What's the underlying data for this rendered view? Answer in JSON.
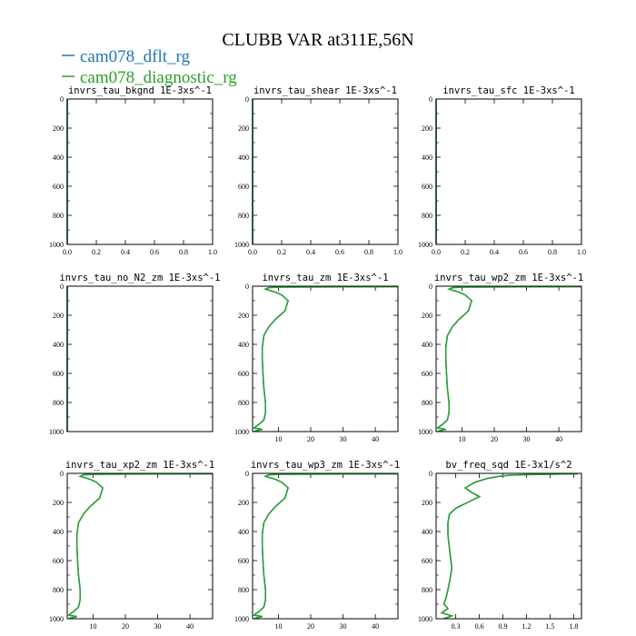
{
  "figure": {
    "title": "CLUBB VAR at311E,56N",
    "legend": [
      {
        "label": "cam078_dflt_rg",
        "color": "#1f77b4"
      },
      {
        "label": "cam078_diagnostic_rg",
        "color": "#2ca02c"
      }
    ]
  },
  "chart_data": [
    {
      "type": "line",
      "title": "invrs_tau_bkgnd  1E-3xs^-1",
      "xlim": [
        0,
        1
      ],
      "ylim": [
        1000,
        0
      ],
      "xticks": [
        "0.0",
        "0.2",
        "0.4",
        "0.6",
        "0.8",
        "1.0"
      ],
      "yticks": [
        "0",
        "200",
        "400",
        "600",
        "800",
        "1000"
      ],
      "series": [
        {
          "color": "#1f77b4",
          "x": [
            0,
            0
          ],
          "y": [
            0,
            1000
          ]
        },
        {
          "color": "#2ca02c",
          "x": [
            0,
            0
          ],
          "y": [
            0,
            1000
          ]
        }
      ]
    },
    {
      "type": "line",
      "title": "invrs_tau_shear  1E-3xs^-1",
      "xlim": [
        0,
        1
      ],
      "ylim": [
        1000,
        0
      ],
      "xticks": [
        "0.0",
        "0.2",
        "0.4",
        "0.6",
        "0.8",
        "1.0"
      ],
      "yticks": [
        "0",
        "200",
        "400",
        "600",
        "800",
        "1000"
      ],
      "series": [
        {
          "color": "#1f77b4",
          "x": [
            0,
            0
          ],
          "y": [
            0,
            1000
          ]
        },
        {
          "color": "#2ca02c",
          "x": [
            0,
            0
          ],
          "y": [
            0,
            1000
          ]
        }
      ]
    },
    {
      "type": "line",
      "title": "invrs_tau_sfc  1E-3xs^-1",
      "xlim": [
        0,
        1
      ],
      "ylim": [
        1000,
        0
      ],
      "xticks": [
        "0.0",
        "0.2",
        "0.4",
        "0.6",
        "0.8",
        "1.0"
      ],
      "yticks": [
        "0",
        "200",
        "400",
        "600",
        "800",
        "1000"
      ],
      "series": [
        {
          "color": "#1f77b4",
          "x": [
            0,
            0
          ],
          "y": [
            0,
            1000
          ]
        },
        {
          "color": "#2ca02c",
          "x": [
            0,
            0
          ],
          "y": [
            0,
            1000
          ]
        }
      ]
    },
    {
      "type": "line",
      "title": "invrs_tau_no_N2_zm  1E-3xs^-1",
      "xlim": [
        0,
        1
      ],
      "ylim": [
        1000,
        0
      ],
      "xticks": [],
      "yticks": [
        "0",
        "200",
        "400",
        "600",
        "800",
        "1000"
      ],
      "series": [
        {
          "color": "#1f77b4",
          "x": [
            0,
            0
          ],
          "y": [
            0,
            1000
          ]
        },
        {
          "color": "#2ca02c",
          "x": [
            0,
            0
          ],
          "y": [
            0,
            1000
          ]
        }
      ]
    },
    {
      "type": "line",
      "title": "invrs_tau_zm  1E-3xs^-1",
      "xlim": [
        2,
        47
      ],
      "ylim": [
        1000,
        0
      ],
      "xticks": [
        "10",
        "20",
        "30",
        "40"
      ],
      "yticks": [
        "0",
        "200",
        "400",
        "600",
        "800",
        "1000"
      ],
      "series": [
        {
          "color": "#1f77b4",
          "x": [
            47,
            10,
            7,
            6,
            9,
            11,
            13,
            12,
            9,
            7,
            5.5,
            5,
            5,
            5.2,
            5.5,
            6,
            6,
            5.5,
            4,
            3,
            2.5,
            5,
            3,
            2.5
          ],
          "y": [
            3,
            6,
            10,
            20,
            40,
            60,
            100,
            170,
            230,
            280,
            340,
            420,
            500,
            600,
            700,
            800,
            870,
            920,
            950,
            965,
            975,
            985,
            995,
            1000
          ]
        },
        {
          "color": "#2ca02c",
          "x": [
            47,
            10,
            7,
            6,
            9,
            11,
            13,
            12,
            9,
            7,
            5.5,
            5,
            5,
            5.2,
            5.5,
            6,
            6,
            5.5,
            4,
            3,
            2.5,
            5,
            3,
            2.5
          ],
          "y": [
            3,
            6,
            10,
            20,
            40,
            60,
            100,
            170,
            230,
            280,
            340,
            420,
            500,
            600,
            700,
            800,
            870,
            920,
            950,
            965,
            975,
            985,
            995,
            1000
          ]
        }
      ]
    },
    {
      "type": "line",
      "title": "invrs_tau_wp2_zm  1E-3xs^-1",
      "xlim": [
        2,
        47
      ],
      "ylim": [
        1000,
        0
      ],
      "xticks": [
        "10",
        "20",
        "30",
        "40"
      ],
      "yticks": [
        "0",
        "200",
        "400",
        "600",
        "800",
        "1000"
      ],
      "series": [
        {
          "color": "#1f77b4",
          "x": [
            47,
            10,
            7,
            6,
            9,
            11,
            13,
            12,
            9,
            7,
            5.5,
            5,
            5,
            5.2,
            5.5,
            6,
            6,
            5.5,
            4,
            3,
            2.5,
            5,
            3,
            2.5
          ],
          "y": [
            3,
            6,
            10,
            20,
            40,
            60,
            100,
            170,
            230,
            280,
            340,
            420,
            500,
            600,
            700,
            800,
            870,
            920,
            950,
            965,
            975,
            985,
            995,
            1000
          ]
        },
        {
          "color": "#2ca02c",
          "x": [
            47,
            10,
            7,
            6,
            9,
            11,
            13,
            12,
            9,
            7,
            5.5,
            5,
            5,
            5.2,
            5.5,
            6,
            6,
            5.5,
            4,
            3,
            2.5,
            5,
            3,
            2.5
          ],
          "y": [
            3,
            6,
            10,
            20,
            40,
            60,
            100,
            170,
            230,
            280,
            340,
            420,
            500,
            600,
            700,
            800,
            870,
            920,
            950,
            965,
            975,
            985,
            995,
            1000
          ]
        }
      ]
    },
    {
      "type": "line",
      "title": "invrs_tau_xp2_zm  1E-3xs^-1",
      "xlim": [
        2,
        47
      ],
      "ylim": [
        1000,
        0
      ],
      "xticks": [
        "10",
        "20",
        "30",
        "40"
      ],
      "yticks": [
        "0",
        "200",
        "400",
        "600",
        "800",
        "1000"
      ],
      "series": [
        {
          "color": "#1f77b4",
          "x": [
            47,
            10,
            7,
            6,
            9,
            11,
            13,
            12,
            9,
            7,
            5.5,
            5,
            5,
            5.2,
            5.5,
            6,
            6,
            5.5,
            4,
            3,
            2.5,
            5,
            3,
            2.5
          ],
          "y": [
            3,
            6,
            10,
            20,
            40,
            60,
            100,
            170,
            230,
            280,
            340,
            420,
            500,
            600,
            700,
            800,
            870,
            920,
            950,
            965,
            975,
            985,
            995,
            1000
          ]
        },
        {
          "color": "#2ca02c",
          "x": [
            47,
            10,
            7,
            6,
            9,
            11,
            13,
            12,
            9,
            7,
            5.5,
            5,
            5,
            5.2,
            5.5,
            6,
            6,
            5.5,
            4,
            3,
            2.5,
            5,
            3,
            2.5
          ],
          "y": [
            3,
            6,
            10,
            20,
            40,
            60,
            100,
            170,
            230,
            280,
            340,
            420,
            500,
            600,
            700,
            800,
            870,
            920,
            950,
            965,
            975,
            985,
            995,
            1000
          ]
        }
      ]
    },
    {
      "type": "line",
      "title": "invrs_tau_wp3_zm  1E-3xs^-1",
      "xlim": [
        2,
        47
      ],
      "ylim": [
        1000,
        0
      ],
      "xticks": [
        "10",
        "20",
        "30",
        "40"
      ],
      "yticks": [
        "0",
        "200",
        "400",
        "600",
        "800",
        "1000"
      ],
      "series": [
        {
          "color": "#1f77b4",
          "x": [
            47,
            10,
            7,
            6,
            9,
            11,
            13,
            12,
            9,
            7,
            5.5,
            5,
            5,
            5.2,
            5.5,
            6,
            6,
            5.5,
            4,
            3,
            2.5,
            5,
            3,
            2.5
          ],
          "y": [
            3,
            6,
            10,
            20,
            40,
            60,
            100,
            170,
            230,
            280,
            340,
            420,
            500,
            600,
            700,
            800,
            870,
            920,
            950,
            965,
            975,
            985,
            995,
            1000
          ]
        },
        {
          "color": "#2ca02c",
          "x": [
            47,
            10,
            7,
            6,
            9,
            11,
            13,
            12,
            9,
            7,
            5.5,
            5,
            5,
            5.2,
            5.5,
            6,
            6,
            5.5,
            4,
            3,
            2.5,
            5,
            3,
            2.5
          ],
          "y": [
            3,
            6,
            10,
            20,
            40,
            60,
            100,
            170,
            230,
            280,
            340,
            420,
            500,
            600,
            700,
            800,
            870,
            920,
            950,
            965,
            975,
            985,
            995,
            1000
          ]
        }
      ]
    },
    {
      "type": "line",
      "title": "bv_freq_sqd  1E-3x1/s^2",
      "xlim": [
        0.05,
        1.9
      ],
      "ylim": [
        1000,
        0
      ],
      "xticks": [
        "0.3",
        "0.6",
        "0.9",
        "1.2",
        "1.5",
        "1.8"
      ],
      "yticks": [
        "0",
        "200",
        "400",
        "600",
        "800",
        "1000"
      ],
      "series": [
        {
          "color": "#1f77b4",
          "x": [
            1.85,
            1.3,
            1.0,
            0.85,
            0.7,
            0.55,
            0.42,
            0.5,
            0.6,
            0.45,
            0.3,
            0.22,
            0.2,
            0.2,
            0.22,
            0.25,
            0.22,
            0.18,
            0.15,
            0.2,
            0.12,
            0.25,
            0.15
          ],
          "y": [
            3,
            8,
            12,
            20,
            35,
            60,
            100,
            130,
            160,
            200,
            240,
            280,
            340,
            420,
            520,
            650,
            750,
            850,
            900,
            930,
            960,
            980,
            1000
          ]
        },
        {
          "color": "#2ca02c",
          "x": [
            1.85,
            1.3,
            1.0,
            0.85,
            0.7,
            0.55,
            0.42,
            0.5,
            0.6,
            0.45,
            0.3,
            0.22,
            0.2,
            0.2,
            0.22,
            0.25,
            0.22,
            0.18,
            0.15,
            0.2,
            0.12,
            0.25,
            0.15
          ],
          "y": [
            3,
            8,
            12,
            20,
            35,
            60,
            100,
            130,
            160,
            200,
            240,
            280,
            340,
            420,
            520,
            650,
            750,
            850,
            900,
            930,
            960,
            980,
            1000
          ]
        }
      ]
    }
  ]
}
